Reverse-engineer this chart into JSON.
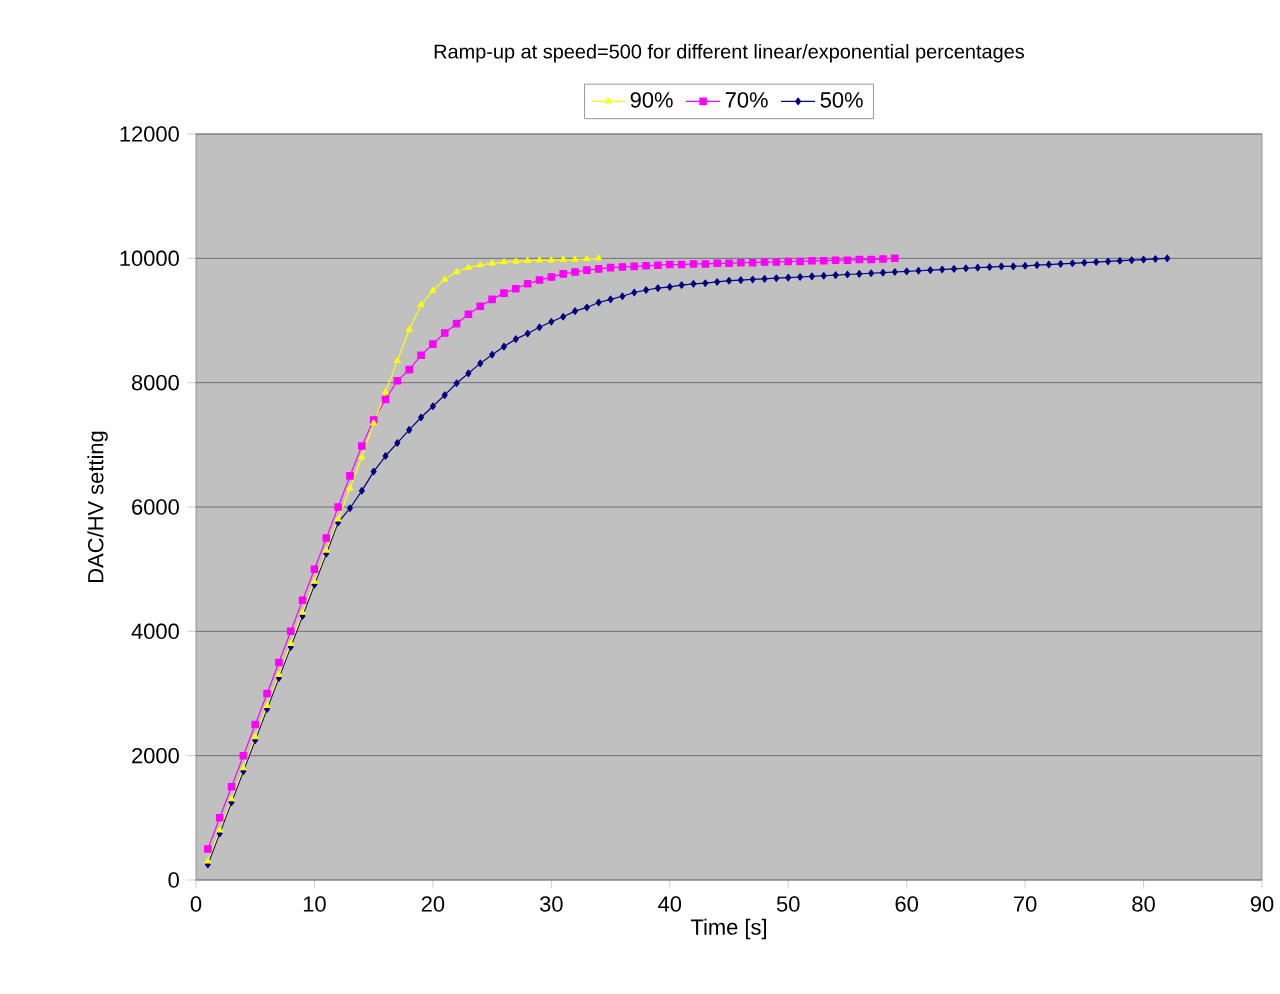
{
  "chart_data": {
    "type": "line",
    "title": "Ramp-up at speed=500 for different linear/exponential percentages",
    "xlabel": "Time [s]",
    "ylabel": "DAC/HV setting",
    "xlim": [
      0,
      90
    ],
    "xticks": [
      0,
      10,
      20,
      30,
      40,
      50,
      60,
      70,
      80,
      90
    ],
    "ylim": [
      0,
      12000
    ],
    "yticks": [
      0,
      2000,
      4000,
      6000,
      8000,
      10000,
      12000
    ],
    "grid": "y",
    "legend": "top",
    "series": [
      {
        "name": "90%",
        "color": "#ffff00",
        "marker": "triangle",
        "x": [
          1,
          2,
          3,
          4,
          5,
          6,
          7,
          8,
          9,
          10,
          11,
          12,
          13,
          14,
          15,
          16,
          17,
          18,
          19,
          20,
          21,
          22,
          23,
          24,
          25,
          26,
          27,
          28,
          29,
          30,
          31,
          32,
          33,
          34
        ],
        "values": [
          300,
          800,
          1300,
          1800,
          2300,
          2800,
          3300,
          3800,
          4300,
          4800,
          5300,
          5800,
          6300,
          6800,
          7350,
          7850,
          8350,
          8850,
          9250,
          9480,
          9660,
          9780,
          9850,
          9890,
          9920,
          9940,
          9950,
          9960,
          9970,
          9970,
          9980,
          9980,
          9990,
          10000
        ]
      },
      {
        "name": "70%",
        "color": "#ff00ff",
        "marker": "square",
        "x": [
          1,
          2,
          3,
          4,
          5,
          6,
          7,
          8,
          9,
          10,
          11,
          12,
          13,
          14,
          15,
          16,
          17,
          18,
          19,
          20,
          21,
          22,
          23,
          24,
          25,
          26,
          27,
          28,
          29,
          30,
          31,
          32,
          33,
          34,
          35,
          36,
          37,
          38,
          39,
          40,
          41,
          42,
          43,
          44,
          45,
          46,
          47,
          48,
          49,
          50,
          51,
          52,
          53,
          54,
          55,
          56,
          57,
          58,
          59
        ],
        "values": [
          500,
          1000,
          1500,
          2000,
          2500,
          3000,
          3500,
          4000,
          4500,
          5000,
          5500,
          6000,
          6500,
          6980,
          7400,
          7730,
          8030,
          8210,
          8440,
          8620,
          8800,
          8950,
          9100,
          9230,
          9340,
          9440,
          9510,
          9590,
          9650,
          9700,
          9750,
          9780,
          9810,
          9830,
          9850,
          9860,
          9870,
          9880,
          9890,
          9900,
          9900,
          9910,
          9910,
          9920,
          9920,
          9930,
          9930,
          9940,
          9940,
          9950,
          9950,
          9960,
          9960,
          9970,
          9970,
          9980,
          9980,
          9990,
          10000
        ]
      },
      {
        "name": "50%",
        "color": "#000080",
        "marker": "diamond",
        "x": [
          1,
          2,
          3,
          4,
          5,
          6,
          7,
          8,
          9,
          10,
          11,
          12,
          13,
          14,
          15,
          16,
          17,
          18,
          19,
          20,
          21,
          22,
          23,
          24,
          25,
          26,
          27,
          28,
          29,
          30,
          31,
          32,
          33,
          34,
          35,
          36,
          37,
          38,
          39,
          40,
          41,
          42,
          43,
          44,
          45,
          46,
          47,
          48,
          49,
          50,
          51,
          52,
          53,
          54,
          55,
          56,
          57,
          58,
          59,
          60,
          61,
          62,
          63,
          64,
          65,
          66,
          67,
          68,
          69,
          70,
          71,
          72,
          73,
          74,
          75,
          76,
          77,
          78,
          79,
          80,
          81,
          82
        ],
        "values": [
          250,
          750,
          1250,
          1750,
          2250,
          2750,
          3250,
          3750,
          4250,
          4750,
          5250,
          5750,
          5980,
          6260,
          6570,
          6820,
          7030,
          7240,
          7440,
          7620,
          7800,
          7990,
          8150,
          8310,
          8450,
          8580,
          8700,
          8790,
          8890,
          8980,
          9060,
          9150,
          9210,
          9290,
          9340,
          9390,
          9450,
          9490,
          9520,
          9540,
          9570,
          9590,
          9600,
          9620,
          9640,
          9650,
          9660,
          9670,
          9680,
          9690,
          9700,
          9710,
          9720,
          9730,
          9740,
          9750,
          9760,
          9770,
          9780,
          9790,
          9800,
          9810,
          9820,
          9830,
          9840,
          9850,
          9860,
          9870,
          9870,
          9880,
          9890,
          9900,
          9910,
          9920,
          9930,
          9940,
          9950,
          9960,
          9970,
          9980,
          9990,
          10000
        ]
      }
    ]
  }
}
